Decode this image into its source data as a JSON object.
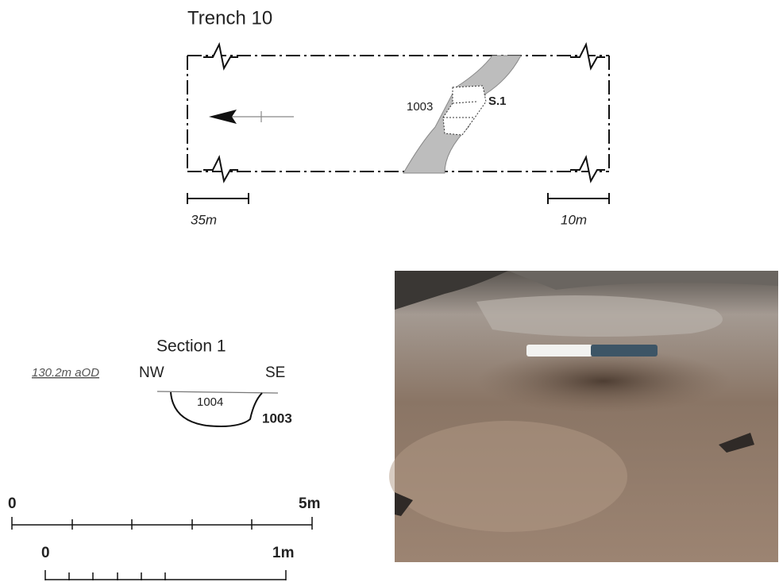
{
  "plan": {
    "title": "Trench 10",
    "feature_label": "1003",
    "section_label": "S.1",
    "scale_left": "35m",
    "scale_right": "10m"
  },
  "section": {
    "title": "Section 1",
    "datum": "130.2m aOD",
    "left_dir": "NW",
    "right_dir": "SE",
    "fill_label": "1004",
    "cut_label": "1003"
  },
  "scales": [
    {
      "start": "0",
      "end": "5m"
    },
    {
      "start": "0",
      "end": "1m"
    }
  ]
}
